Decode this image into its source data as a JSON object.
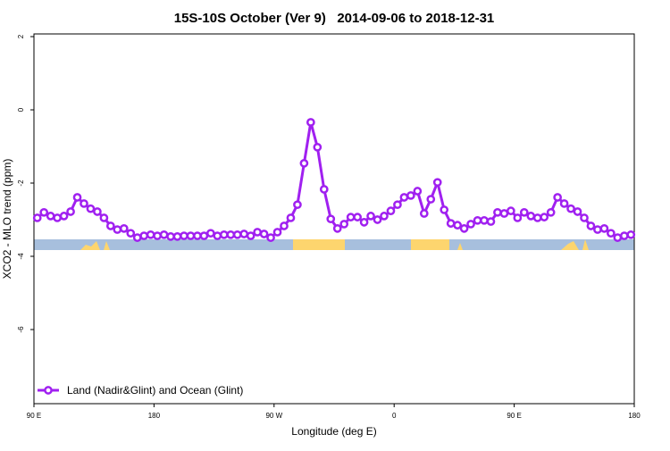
{
  "chart_data": {
    "type": "line",
    "title": "15S-10S October (Ver 9)   2014-09-06 to 2018-12-31",
    "x_label": "Longitude (deg E)",
    "y_label": "XCO2 - MLO trend (ppm)",
    "xlim": [
      90,
      540
    ],
    "xticks": [
      {
        "value": 90,
        "label": "90 E"
      },
      {
        "value": 180,
        "label": "180"
      },
      {
        "value": 270,
        "label": "90 W"
      },
      {
        "value": 360,
        "label": "0"
      },
      {
        "value": 450,
        "label": "90 E"
      },
      {
        "value": 540,
        "label": "180"
      }
    ],
    "ylim": [
      -8,
      2
    ],
    "yticks": [
      -6,
      -4,
      -2,
      0,
      2
    ],
    "legend": "bottom-left",
    "x": [
      92.5,
      97.5,
      102.5,
      107.5,
      112.5,
      117.5,
      122.5,
      127.5,
      132.5,
      137.5,
      142.5,
      147.5,
      152.5,
      157.5,
      162.5,
      167.5,
      172.5,
      177.5,
      182.5,
      187.5,
      192.5,
      197.5,
      202.5,
      207.5,
      212.5,
      217.5,
      222.5,
      227.5,
      232.5,
      237.5,
      242.5,
      247.5,
      252.5,
      257.5,
      262.5,
      267.5,
      272.5,
      277.5,
      282.5,
      287.5,
      292.5,
      297.5,
      302.5,
      307.5,
      312.5,
      317.5,
      322.5,
      327.5,
      332.5,
      337.5,
      342.5,
      347.5,
      352.5,
      357.5,
      362.5,
      367.5,
      372.5,
      377.5,
      382.5,
      387.5,
      392.5,
      397.5,
      402.5,
      407.5,
      412.5,
      417.5,
      422.5,
      427.5,
      432.5,
      437.5,
      442.5,
      447.5,
      452.5,
      457.5,
      462.5,
      467.5,
      472.5,
      477.5,
      482.5,
      487.5,
      492.5,
      497.5,
      502.5,
      507.5,
      512.5,
      517.5,
      522.5,
      527.5,
      532.5,
      537.5
    ],
    "series": [
      {
        "name": "Land (Nadir&Glint) and Ocean (Glint)",
        "color": "#a020f0",
        "values": [
          -2.95,
          -2.8,
          -2.9,
          -2.95,
          -2.9,
          -2.78,
          -2.39,
          -2.56,
          -2.7,
          -2.78,
          -2.95,
          -3.17,
          -3.27,
          -3.24,
          -3.37,
          -3.49,
          -3.44,
          -3.41,
          -3.44,
          -3.41,
          -3.46,
          -3.46,
          -3.44,
          -3.44,
          -3.44,
          -3.44,
          -3.37,
          -3.44,
          -3.41,
          -3.41,
          -3.41,
          -3.39,
          -3.44,
          -3.34,
          -3.39,
          -3.49,
          -3.34,
          -3.17,
          -2.95,
          -2.59,
          -1.46,
          -0.34,
          -1.02,
          -2.17,
          -2.98,
          -3.24,
          -3.12,
          -2.93,
          -2.93,
          -3.07,
          -2.9,
          -3.0,
          -2.9,
          -2.76,
          -2.59,
          -2.39,
          -2.34,
          -2.22,
          -2.83,
          -2.44,
          -1.98,
          -2.73,
          -3.1,
          -3.15,
          -3.24,
          -3.12,
          -3.02,
          -3.02,
          -3.05,
          -2.8,
          -2.83,
          -2.76,
          -2.95,
          -2.8,
          -2.9,
          -2.95,
          -2.93,
          -2.8,
          -2.39,
          -2.56,
          -2.7,
          -2.78,
          -2.95,
          -3.17,
          -3.27,
          -3.24,
          -3.37,
          -3.49,
          -3.44,
          -3.41
        ]
      }
    ]
  }
}
